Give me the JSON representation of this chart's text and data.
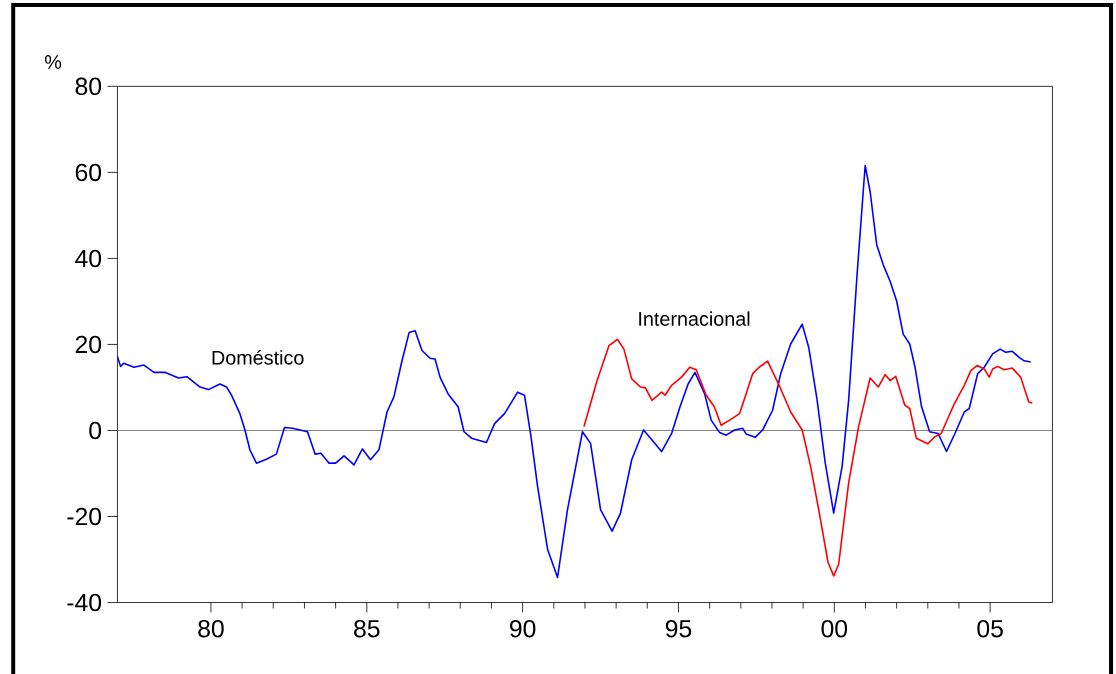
{
  "chart_data": {
    "type": "line",
    "ylabel": "%",
    "xlim": [
      1977,
      2007
    ],
    "ylim": [
      -40,
      80
    ],
    "xticks": [
      {
        "value": 1980,
        "label": "80"
      },
      {
        "value": 1985,
        "label": "85"
      },
      {
        "value": 1990,
        "label": "90"
      },
      {
        "value": 1995,
        "label": "95"
      },
      {
        "value": 2000,
        "label": "00"
      },
      {
        "value": 2005,
        "label": "05"
      }
    ],
    "yticks": [
      -40,
      -20,
      0,
      20,
      40,
      60,
      80
    ],
    "grid": false,
    "legend": false,
    "marker": "none",
    "line_style": "solid",
    "ref_lines": [
      {
        "axis": "y",
        "value": 0,
        "color": "#808080"
      }
    ],
    "series": [
      {
        "name": "Doméstico",
        "color": "#0000ff",
        "x": [
          1977.0,
          1977.1,
          1977.2,
          1977.53,
          1977.85,
          1978.17,
          1978.54,
          1978.96,
          1979.23,
          1979.65,
          1979.92,
          1980.29,
          1980.5,
          1980.66,
          1980.93,
          1981.09,
          1981.25,
          1981.46,
          1981.78,
          1982.1,
          1982.36,
          1982.62,
          1983.1,
          1983.34,
          1983.53,
          1983.79,
          1984.0,
          1984.27,
          1984.59,
          1984.86,
          1985.12,
          1985.39,
          1985.65,
          1985.87,
          1986.13,
          1986.36,
          1986.55,
          1986.77,
          1987.03,
          1987.19,
          1987.35,
          1987.61,
          1987.93,
          1988.12,
          1988.36,
          1988.84,
          1989.1,
          1989.42,
          1989.84,
          1990.06,
          1990.27,
          1990.48,
          1990.8,
          1991.12,
          1991.44,
          1991.92,
          1992.18,
          1992.5,
          1992.87,
          1993.14,
          1993.5,
          1993.88,
          1994.15,
          1994.46,
          1994.78,
          1995.05,
          1995.31,
          1995.53,
          1995.84,
          1996.05,
          1996.32,
          1996.53,
          1996.8,
          1997.06,
          1997.17,
          1997.46,
          1997.7,
          1998.02,
          1998.28,
          1998.6,
          1998.97,
          1999.18,
          1999.45,
          1999.71,
          1999.98,
          2000.25,
          2000.46,
          2000.73,
          2000.99,
          2001.15,
          2001.36,
          2001.57,
          2001.79,
          2002.0,
          2002.21,
          2002.42,
          2002.59,
          2002.8,
          2003.06,
          2003.33,
          2003.6,
          2003.87,
          2004.17,
          2004.33,
          2004.6,
          2004.81,
          2005.08,
          2005.32,
          2005.5,
          2005.71,
          2005.93,
          2006.09,
          2006.3
        ],
        "values": [
          17.2,
          14.9,
          15.6,
          14.7,
          15.2,
          13.5,
          13.5,
          12.2,
          12.5,
          10.1,
          9.5,
          10.8,
          10.1,
          8.2,
          3.9,
          0.1,
          -4.5,
          -7.6,
          -6.7,
          -5.5,
          0.7,
          0.5,
          -0.3,
          -5.5,
          -5.3,
          -7.6,
          -7.6,
          -5.9,
          -8.0,
          -4.3,
          -6.8,
          -4.5,
          4.3,
          7.8,
          16.2,
          22.8,
          23.2,
          18.6,
          16.8,
          16.6,
          12.4,
          8.5,
          5.5,
          -0.3,
          -1.8,
          -2.8,
          1.6,
          3.9,
          8.9,
          8.2,
          -1.5,
          -13.0,
          -27.6,
          -34.2,
          -18.4,
          -0.3,
          -3.0,
          -18.4,
          -23.4,
          -19.2,
          -6.8,
          0.1,
          -2.2,
          -4.9,
          -0.7,
          5.5,
          10.8,
          13.5,
          8.5,
          2.4,
          -0.5,
          -1.1,
          0.1,
          0.5,
          -0.8,
          -1.6,
          0.1,
          4.7,
          13.2,
          20.1,
          24.7,
          19.3,
          7.0,
          -7.6,
          -19.2,
          -8.4,
          7.0,
          36.2,
          61.6,
          55.5,
          43.2,
          38.5,
          34.7,
          30.1,
          22.4,
          20.1,
          14.7,
          5.5,
          -0.3,
          -0.7,
          -4.9,
          -0.7,
          4.3,
          5.1,
          13.2,
          14.7,
          17.8,
          18.9,
          18.2,
          18.4,
          17.0,
          16.2,
          15.9
        ]
      },
      {
        "name": "Internacional",
        "color": "#ff0000",
        "x": [
          1991.97,
          1992.39,
          1992.77,
          1993.04,
          1993.25,
          1993.5,
          1993.78,
          1993.94,
          1994.15,
          1994.46,
          1994.57,
          1994.78,
          1995.1,
          1995.36,
          1995.57,
          1995.89,
          1996.15,
          1996.37,
          1996.64,
          1996.96,
          1997.17,
          1997.38,
          1997.59,
          1997.86,
          1998.23,
          1998.6,
          1998.97,
          1999.24,
          1999.5,
          1999.8,
          1999.98,
          2000.14,
          2000.46,
          2000.78,
          2001.15,
          2001.41,
          2001.63,
          2001.79,
          2001.97,
          2002.26,
          2002.42,
          2002.63,
          2003.0,
          2003.22,
          2003.43,
          2003.85,
          2004.17,
          2004.38,
          2004.58,
          2004.81,
          2004.97,
          2005.08,
          2005.24,
          2005.45,
          2005.71,
          2005.98,
          2006.24,
          2006.35
        ],
        "values": [
          0.9,
          11.6,
          19.7,
          21.2,
          18.9,
          12.0,
          10.1,
          9.9,
          7.0,
          8.9,
          8.2,
          10.5,
          12.4,
          14.7,
          14.1,
          8.2,
          5.5,
          1.2,
          2.4,
          3.9,
          8.5,
          13.2,
          14.7,
          16.1,
          10.5,
          4.3,
          0.1,
          -8.4,
          -18.4,
          -30.7,
          -33.8,
          -31.1,
          -12.2,
          0.9,
          12.2,
          10.1,
          13.0,
          11.6,
          12.6,
          5.9,
          5.1,
          -1.8,
          -3.1,
          -1.5,
          -0.7,
          6.2,
          10.5,
          13.9,
          15.1,
          14.3,
          12.4,
          14.3,
          14.9,
          14.1,
          14.5,
          12.4,
          6.6,
          6.4
        ]
      }
    ]
  }
}
